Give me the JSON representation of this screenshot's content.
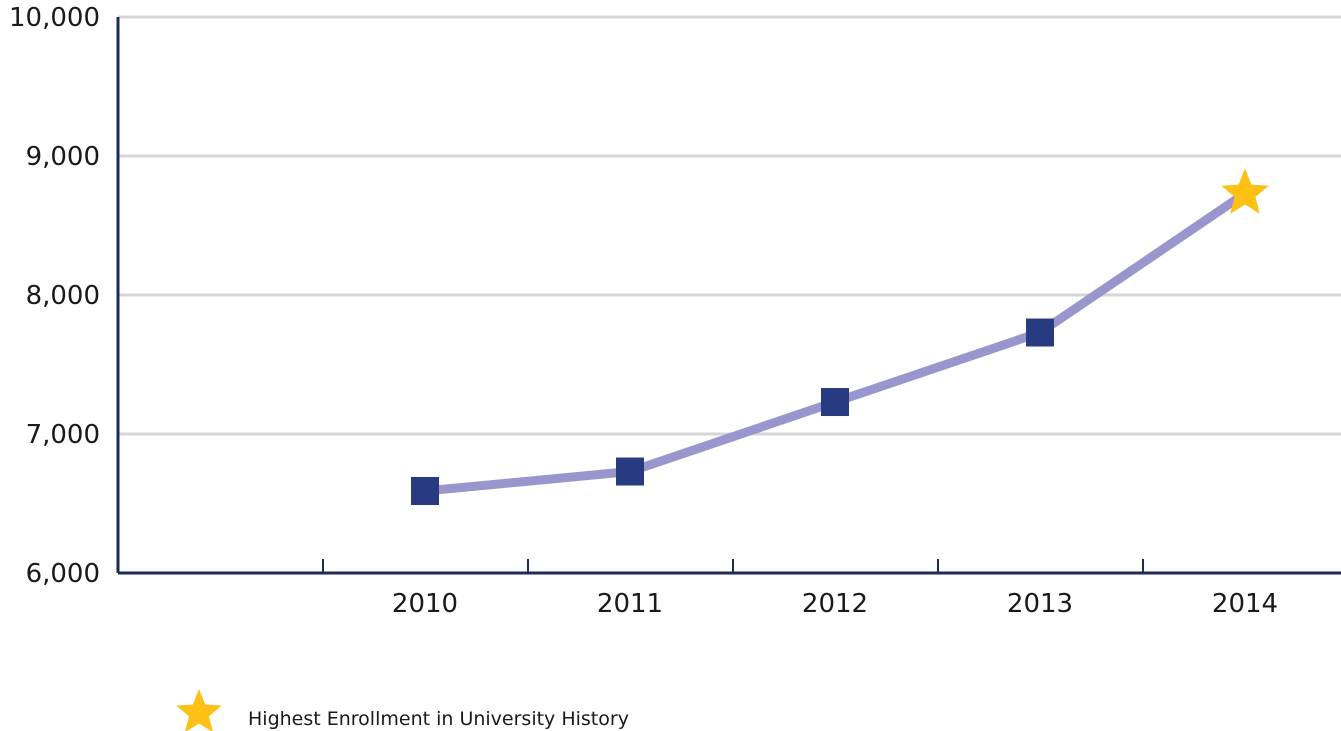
{
  "chart_data": {
    "type": "line",
    "title": "",
    "xlabel": "",
    "ylabel": "",
    "categories": [
      "2010",
      "2011",
      "2012",
      "2013",
      "2014"
    ],
    "series": [
      {
        "values": [
          6590,
          6730,
          7230,
          7730,
          8730
        ]
      }
    ],
    "ylim": [
      6000,
      10000
    ],
    "yticks": [
      "6,000",
      "7,000",
      "8,000",
      "9,000",
      "10,000"
    ],
    "ytick_values": [
      6000,
      7000,
      8000,
      9000,
      10000
    ],
    "grid": true,
    "highlight": {
      "category": "2014",
      "marker": "star"
    },
    "legend": {
      "placement": "bottom-left",
      "label": "Highest Enrollment in University History",
      "marker": "star-icon"
    },
    "colors": {
      "line": "#9896cd",
      "marker": "#283a80",
      "star": "#fcc114",
      "grid": "#d6d6d6",
      "axis": "#1f2a5c"
    }
  }
}
